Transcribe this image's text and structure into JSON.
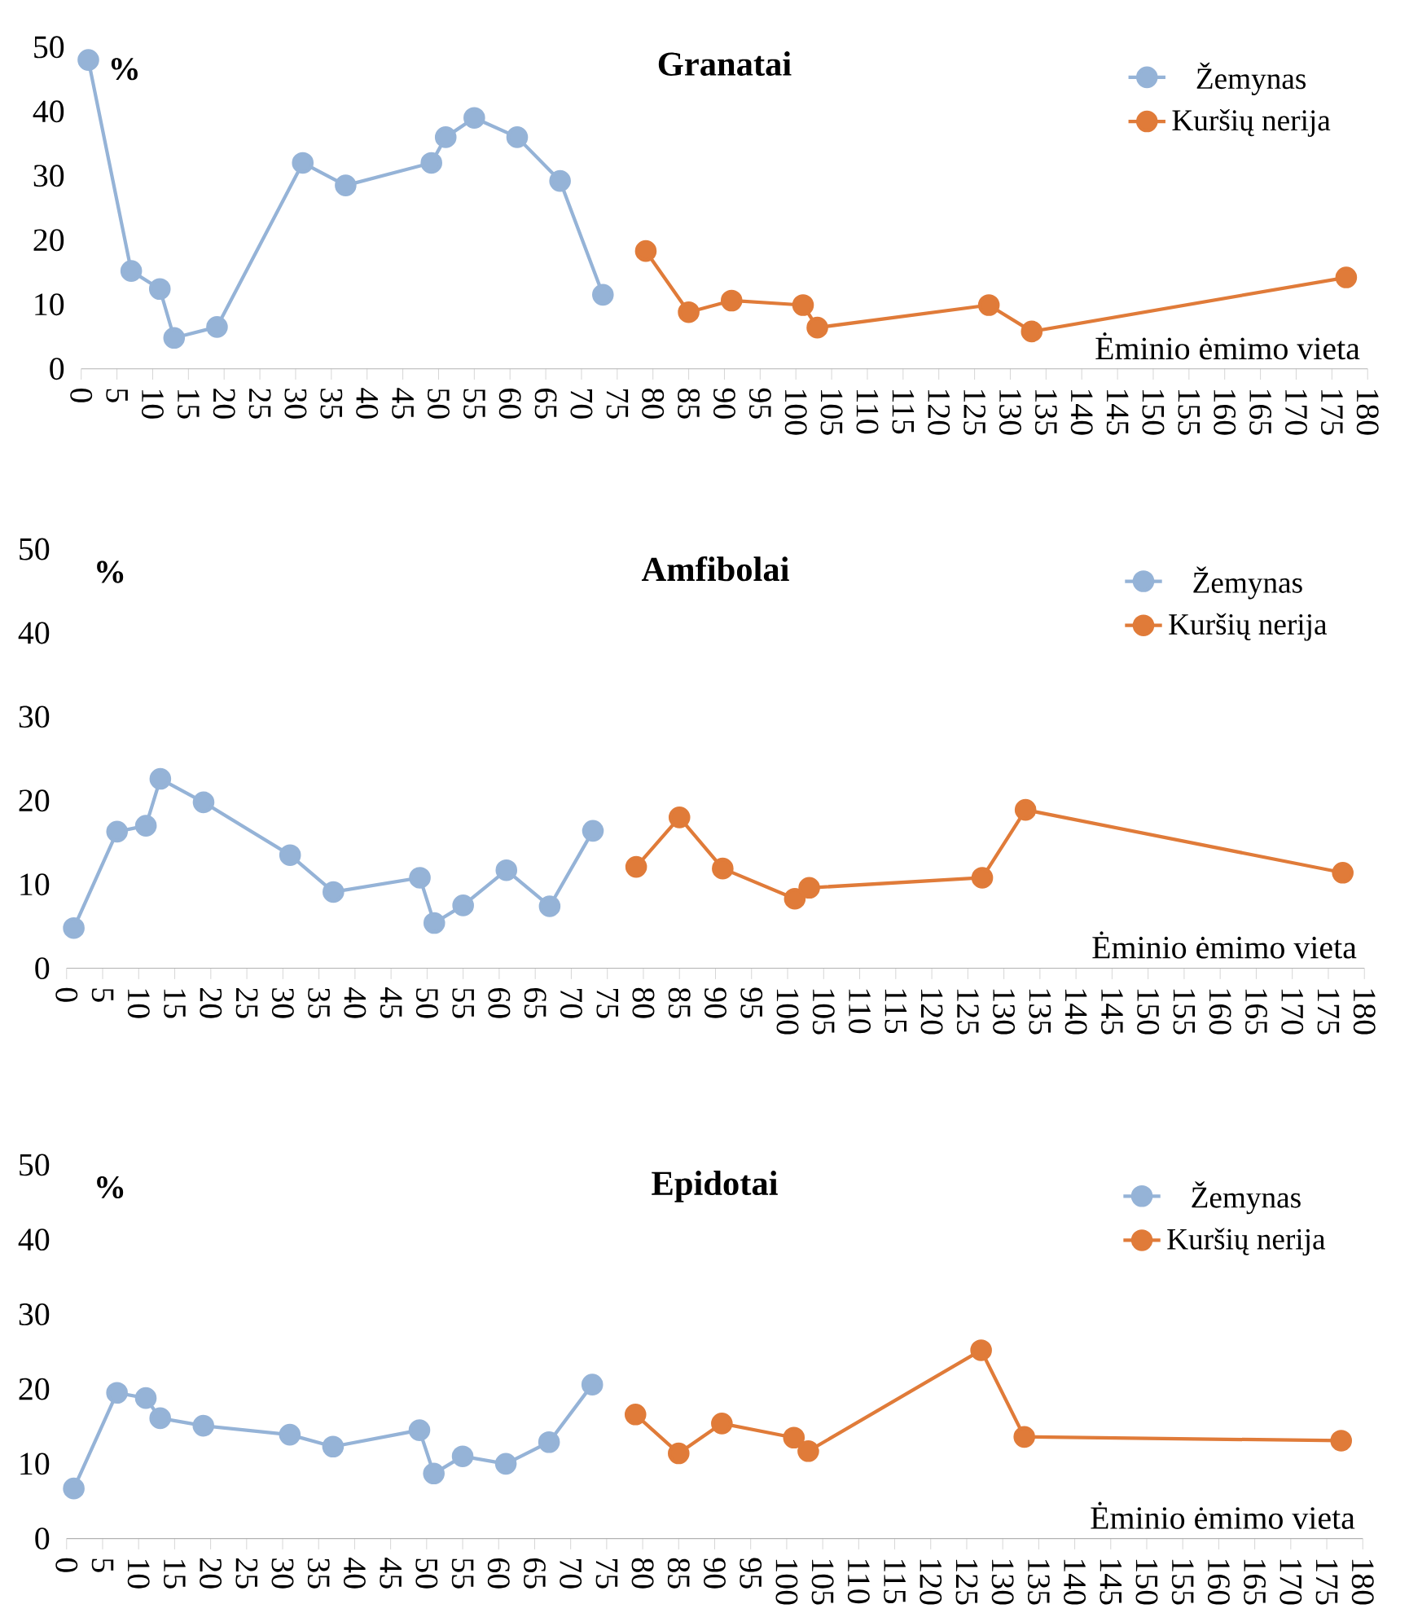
{
  "chart_data": [
    {
      "type": "line",
      "title": "Granatai",
      "ylabel": "%",
      "xlabel": "Ėminio ėmimo vieta",
      "xlim": [
        0,
        180
      ],
      "xticks": [
        0,
        5,
        10,
        15,
        20,
        25,
        30,
        35,
        40,
        45,
        50,
        55,
        60,
        65,
        70,
        75,
        80,
        85,
        90,
        95,
        100,
        105,
        110,
        115,
        120,
        125,
        130,
        135,
        140,
        145,
        150,
        155,
        160,
        165,
        170,
        175,
        180
      ],
      "ylim": [
        0,
        50
      ],
      "yticks": [
        0,
        10,
        20,
        30,
        40,
        50
      ],
      "legend": "top right",
      "marker": "circle",
      "line_style": "solid",
      "series": [
        {
          "name": "Žemynas",
          "color": "#95b3d7",
          "x": [
            1,
            7,
            11,
            13,
            19,
            31,
            37,
            49,
            51,
            55,
            61,
            67,
            73
          ],
          "values": [
            48,
            15.2,
            12.4,
            4.8,
            6.5,
            32,
            28.5,
            32,
            36,
            39,
            36,
            29.2,
            11.5
          ]
        },
        {
          "name": "Kuršių nerija",
          "color": "#e07b39",
          "x": [
            79,
            85,
            91,
            101,
            103,
            127,
            133,
            177
          ],
          "values": [
            18.3,
            8.8,
            10.6,
            9.9,
            6.4,
            9.9,
            5.8,
            14.2
          ]
        }
      ]
    },
    {
      "type": "line",
      "title": "Amfibolai",
      "ylabel": "%",
      "xlabel": "Ėminio ėmimo vieta",
      "xlim": [
        0,
        180
      ],
      "xticks": [
        0,
        5,
        10,
        15,
        20,
        25,
        30,
        35,
        40,
        45,
        50,
        55,
        60,
        65,
        70,
        75,
        80,
        85,
        90,
        95,
        100,
        105,
        110,
        115,
        120,
        125,
        130,
        135,
        140,
        145,
        150,
        155,
        160,
        165,
        170,
        175,
        180
      ],
      "ylim": [
        0,
        50
      ],
      "yticks": [
        0,
        10,
        20,
        30,
        40,
        50
      ],
      "legend": "top right",
      "marker": "circle",
      "line_style": "solid",
      "series": [
        {
          "name": "Žemynas",
          "color": "#95b3d7",
          "x": [
            1,
            7,
            11,
            13,
            19,
            31,
            37,
            49,
            51,
            55,
            61,
            67,
            73
          ],
          "values": [
            4.8,
            16.3,
            17,
            22.6,
            19.8,
            13.5,
            9.1,
            10.8,
            5.4,
            7.5,
            11.7,
            7.4,
            16.4
          ]
        },
        {
          "name": "Kuršių nerija",
          "color": "#e07b39",
          "x": [
            79,
            85,
            91,
            101,
            103,
            127,
            133,
            177
          ],
          "values": [
            12.1,
            18,
            11.9,
            8.3,
            9.6,
            10.8,
            18.9,
            11.4
          ]
        }
      ]
    },
    {
      "type": "line",
      "title": "Epidotai",
      "ylabel": "%",
      "xlabel": "Ėminio ėmimo vieta",
      "xlim": [
        0,
        180
      ],
      "xticks": [
        0,
        5,
        10,
        15,
        20,
        25,
        30,
        35,
        40,
        45,
        50,
        55,
        60,
        65,
        70,
        75,
        80,
        85,
        90,
        95,
        100,
        105,
        110,
        115,
        120,
        125,
        130,
        135,
        140,
        145,
        150,
        155,
        160,
        165,
        170,
        175,
        180
      ],
      "ylim": [
        0,
        50
      ],
      "yticks": [
        0,
        10,
        20,
        30,
        40,
        50
      ],
      "legend": "top right",
      "marker": "circle",
      "line_style": "solid",
      "series": [
        {
          "name": "Žemynas",
          "color": "#95b3d7",
          "x": [
            1,
            7,
            11,
            13,
            19,
            31,
            37,
            49,
            51,
            55,
            61,
            67,
            73
          ],
          "values": [
            6.7,
            19.5,
            18.8,
            16.1,
            15.1,
            13.9,
            12.3,
            14.5,
            8.7,
            11,
            10,
            12.9,
            20.6
          ]
        },
        {
          "name": "Kuršių nerija",
          "color": "#e07b39",
          "x": [
            79,
            85,
            91,
            101,
            103,
            127,
            133,
            177
          ],
          "values": [
            16.6,
            11.4,
            15.4,
            13.5,
            11.7,
            25.2,
            13.6,
            13.1
          ]
        }
      ]
    }
  ]
}
